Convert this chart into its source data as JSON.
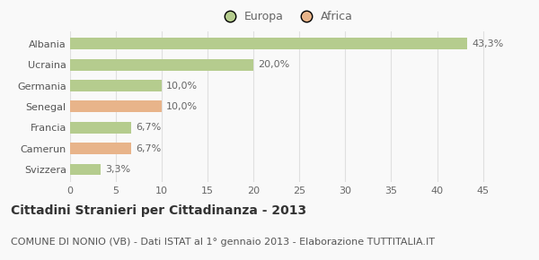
{
  "categories": [
    "Albania",
    "Ucraina",
    "Germania",
    "Senegal",
    "Francia",
    "Camerun",
    "Svizzera"
  ],
  "values": [
    43.3,
    20.0,
    10.0,
    10.0,
    6.7,
    6.7,
    3.3
  ],
  "labels": [
    "43,3%",
    "20,0%",
    "10,0%",
    "10,0%",
    "6,7%",
    "6,7%",
    "3,3%"
  ],
  "colors": [
    "#b5cc8e",
    "#b5cc8e",
    "#b5cc8e",
    "#e8b48a",
    "#b5cc8e",
    "#e8b48a",
    "#b5cc8e"
  ],
  "legend_items": [
    {
      "label": "Europa",
      "color": "#b5cc8e"
    },
    {
      "label": "Africa",
      "color": "#e8b48a"
    }
  ],
  "xlim": [
    0,
    47
  ],
  "xticks": [
    0,
    5,
    10,
    15,
    20,
    25,
    30,
    35,
    40,
    45
  ],
  "title": "Cittadini Stranieri per Cittadinanza - 2013",
  "subtitle": "COMUNE DI NONIO (VB) - Dati ISTAT al 1° gennaio 2013 - Elaborazione TUTTITALIA.IT",
  "background_color": "#f9f9f9",
  "grid_color": "#e0e0e0",
  "title_fontsize": 10,
  "subtitle_fontsize": 8,
  "label_fontsize": 8,
  "tick_fontsize": 8,
  "legend_fontsize": 9,
  "bar_height": 0.55
}
